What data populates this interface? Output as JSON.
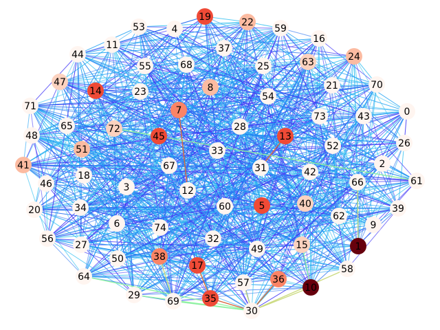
{
  "graph": {
    "type": "network",
    "node_count": 75,
    "colormap": "rainbow",
    "node_colormap": "Reds",
    "node_colors": {
      "white": "#fff5f0",
      "light": "#fcd2bf",
      "salmon": "#fcbba1",
      "mid": "#fb8466",
      "red": "#ef4a36",
      "dark": "#67000d"
    },
    "edge_colors": [
      "#2a73f0",
      "#4338f6",
      "#1ea0f3",
      "#3cc3f0",
      "#8ff4a0",
      "#c9d97a",
      "#e06a2f"
    ],
    "nodes": [
      {
        "id": "0",
        "tone": "white"
      },
      {
        "id": "1",
        "tone": "dark"
      },
      {
        "id": "2",
        "tone": "white"
      },
      {
        "id": "3",
        "tone": "white"
      },
      {
        "id": "4",
        "tone": "white"
      },
      {
        "id": "5",
        "tone": "red"
      },
      {
        "id": "6",
        "tone": "white"
      },
      {
        "id": "7",
        "tone": "mid"
      },
      {
        "id": "8",
        "tone": "salmon"
      },
      {
        "id": "9",
        "tone": "white"
      },
      {
        "id": "10",
        "tone": "dark"
      },
      {
        "id": "11",
        "tone": "white"
      },
      {
        "id": "12",
        "tone": "white"
      },
      {
        "id": "13",
        "tone": "red"
      },
      {
        "id": "14",
        "tone": "red"
      },
      {
        "id": "15",
        "tone": "light"
      },
      {
        "id": "16",
        "tone": "white"
      },
      {
        "id": "17",
        "tone": "red"
      },
      {
        "id": "18",
        "tone": "white"
      },
      {
        "id": "19",
        "tone": "red"
      },
      {
        "id": "20",
        "tone": "white"
      },
      {
        "id": "21",
        "tone": "white"
      },
      {
        "id": "22",
        "tone": "salmon"
      },
      {
        "id": "23",
        "tone": "white"
      },
      {
        "id": "24",
        "tone": "salmon"
      },
      {
        "id": "25",
        "tone": "white"
      },
      {
        "id": "26",
        "tone": "white"
      },
      {
        "id": "27",
        "tone": "white"
      },
      {
        "id": "28",
        "tone": "white"
      },
      {
        "id": "29",
        "tone": "white"
      },
      {
        "id": "30",
        "tone": "white"
      },
      {
        "id": "31",
        "tone": "white"
      },
      {
        "id": "32",
        "tone": "white"
      },
      {
        "id": "33",
        "tone": "white"
      },
      {
        "id": "34",
        "tone": "white"
      },
      {
        "id": "35",
        "tone": "red"
      },
      {
        "id": "36",
        "tone": "mid"
      },
      {
        "id": "37",
        "tone": "white"
      },
      {
        "id": "38",
        "tone": "mid"
      },
      {
        "id": "39",
        "tone": "white"
      },
      {
        "id": "40",
        "tone": "light"
      },
      {
        "id": "41",
        "tone": "salmon"
      },
      {
        "id": "42",
        "tone": "white"
      },
      {
        "id": "43",
        "tone": "white"
      },
      {
        "id": "44",
        "tone": "white"
      },
      {
        "id": "45",
        "tone": "red"
      },
      {
        "id": "46",
        "tone": "white"
      },
      {
        "id": "47",
        "tone": "light"
      },
      {
        "id": "48",
        "tone": "white"
      },
      {
        "id": "49",
        "tone": "white"
      },
      {
        "id": "50",
        "tone": "white"
      },
      {
        "id": "51",
        "tone": "salmon"
      },
      {
        "id": "52",
        "tone": "white"
      },
      {
        "id": "53",
        "tone": "white"
      },
      {
        "id": "54",
        "tone": "white"
      },
      {
        "id": "55",
        "tone": "white"
      },
      {
        "id": "56",
        "tone": "white"
      },
      {
        "id": "57",
        "tone": "white"
      },
      {
        "id": "58",
        "tone": "white"
      },
      {
        "id": "59",
        "tone": "white"
      },
      {
        "id": "60",
        "tone": "white"
      },
      {
        "id": "61",
        "tone": "white"
      },
      {
        "id": "62",
        "tone": "white"
      },
      {
        "id": "63",
        "tone": "light"
      },
      {
        "id": "64",
        "tone": "white"
      },
      {
        "id": "65",
        "tone": "white"
      },
      {
        "id": "66",
        "tone": "white"
      },
      {
        "id": "67",
        "tone": "white"
      },
      {
        "id": "68",
        "tone": "white"
      },
      {
        "id": "69",
        "tone": "white"
      },
      {
        "id": "70",
        "tone": "white"
      },
      {
        "id": "71",
        "tone": "white"
      },
      {
        "id": "72",
        "tone": "light"
      },
      {
        "id": "73",
        "tone": "white"
      },
      {
        "id": "74",
        "tone": "white"
      }
    ],
    "highlighted_edges": [
      {
        "source": "36",
        "target": "30",
        "color_index": 6
      },
      {
        "source": "35",
        "target": "30",
        "color_index": 6
      },
      {
        "source": "10",
        "target": "30",
        "color_index": 5
      },
      {
        "source": "57",
        "target": "30",
        "color_index": 5
      },
      {
        "source": "58",
        "target": "30",
        "color_index": 5
      },
      {
        "source": "17",
        "target": "35",
        "color_index": 6
      },
      {
        "source": "38",
        "target": "69",
        "color_index": 5
      },
      {
        "source": "72",
        "target": "61",
        "color_index": 4
      },
      {
        "source": "13",
        "target": "31",
        "color_index": 6
      },
      {
        "source": "7",
        "target": "12",
        "color_index": 6
      },
      {
        "source": "1",
        "target": "66",
        "color_index": 5
      },
      {
        "source": "15",
        "target": "10",
        "color_index": 4
      },
      {
        "source": "64",
        "target": "30",
        "color_index": 4
      },
      {
        "source": "69",
        "target": "30",
        "color_index": 4
      },
      {
        "source": "29",
        "target": "30",
        "color_index": 4
      }
    ]
  }
}
